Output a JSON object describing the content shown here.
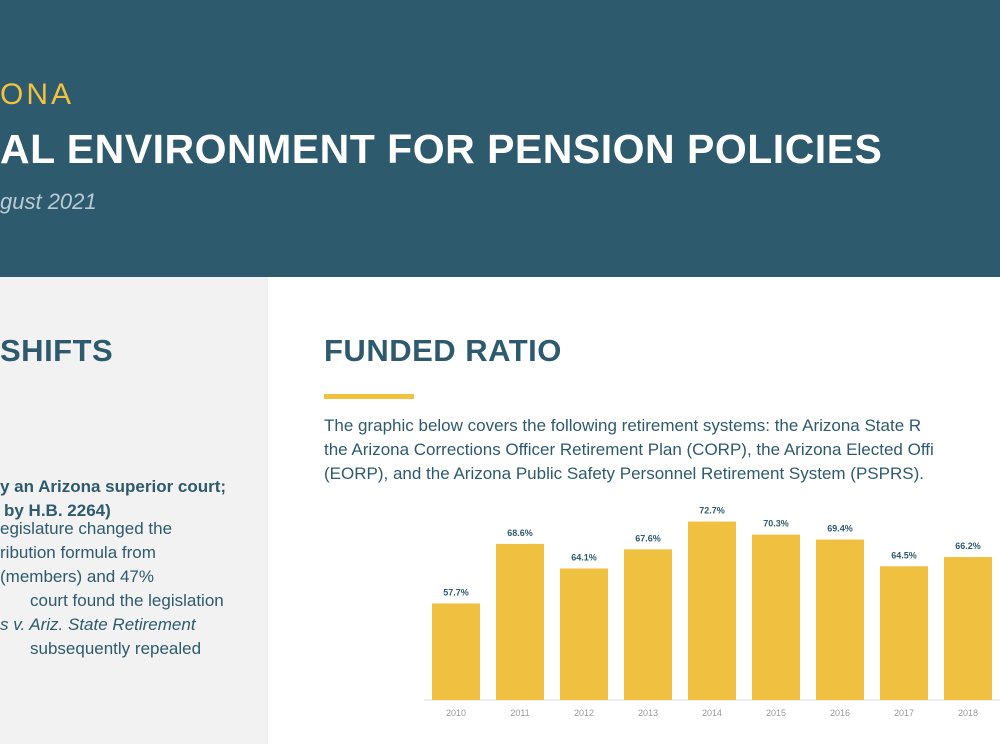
{
  "header": {
    "kicker": "ONA",
    "title": "AL ENVIRONMENT FOR PENSION POLICIES",
    "date": "gust 2021"
  },
  "left_panel": {
    "heading": "SHIFTS",
    "lines": [
      "y an Arizona superior court;",
      "by H.B. 2264)",
      "egislature changed the",
      "ribution formula from",
      "(members) and 47%",
      "court found the legislation",
      "s v. Ariz. State Retirement",
      "subsequently repealed"
    ]
  },
  "funded_ratio": {
    "heading": "FUNDED RATIO",
    "lines": [
      "The graphic below covers the following retirement systems: the Arizona State R",
      "the Arizona Corrections Officer Retirement Plan (CORP), the Arizona Elected Offi",
      "(EORP), and the Arizona Public Safety Personnel Retirement System (PSPRS)."
    ]
  },
  "chart_data": {
    "type": "bar",
    "color": "#f0c040",
    "categories": [
      "2010",
      "2011",
      "2012",
      "2013",
      "2014",
      "2015",
      "2016",
      "2017",
      "2018"
    ],
    "values": [
      57.7,
      68.6,
      64.1,
      67.6,
      72.7,
      70.3,
      69.4,
      64.5,
      66.2
    ],
    "value_labels": [
      "57.7%",
      "68.6%",
      "64.1%",
      "67.6%",
      "72.7%",
      "70.3%",
      "69.4%",
      "64.5%",
      "66.2%"
    ],
    "ylim": [
      40,
      75
    ]
  }
}
